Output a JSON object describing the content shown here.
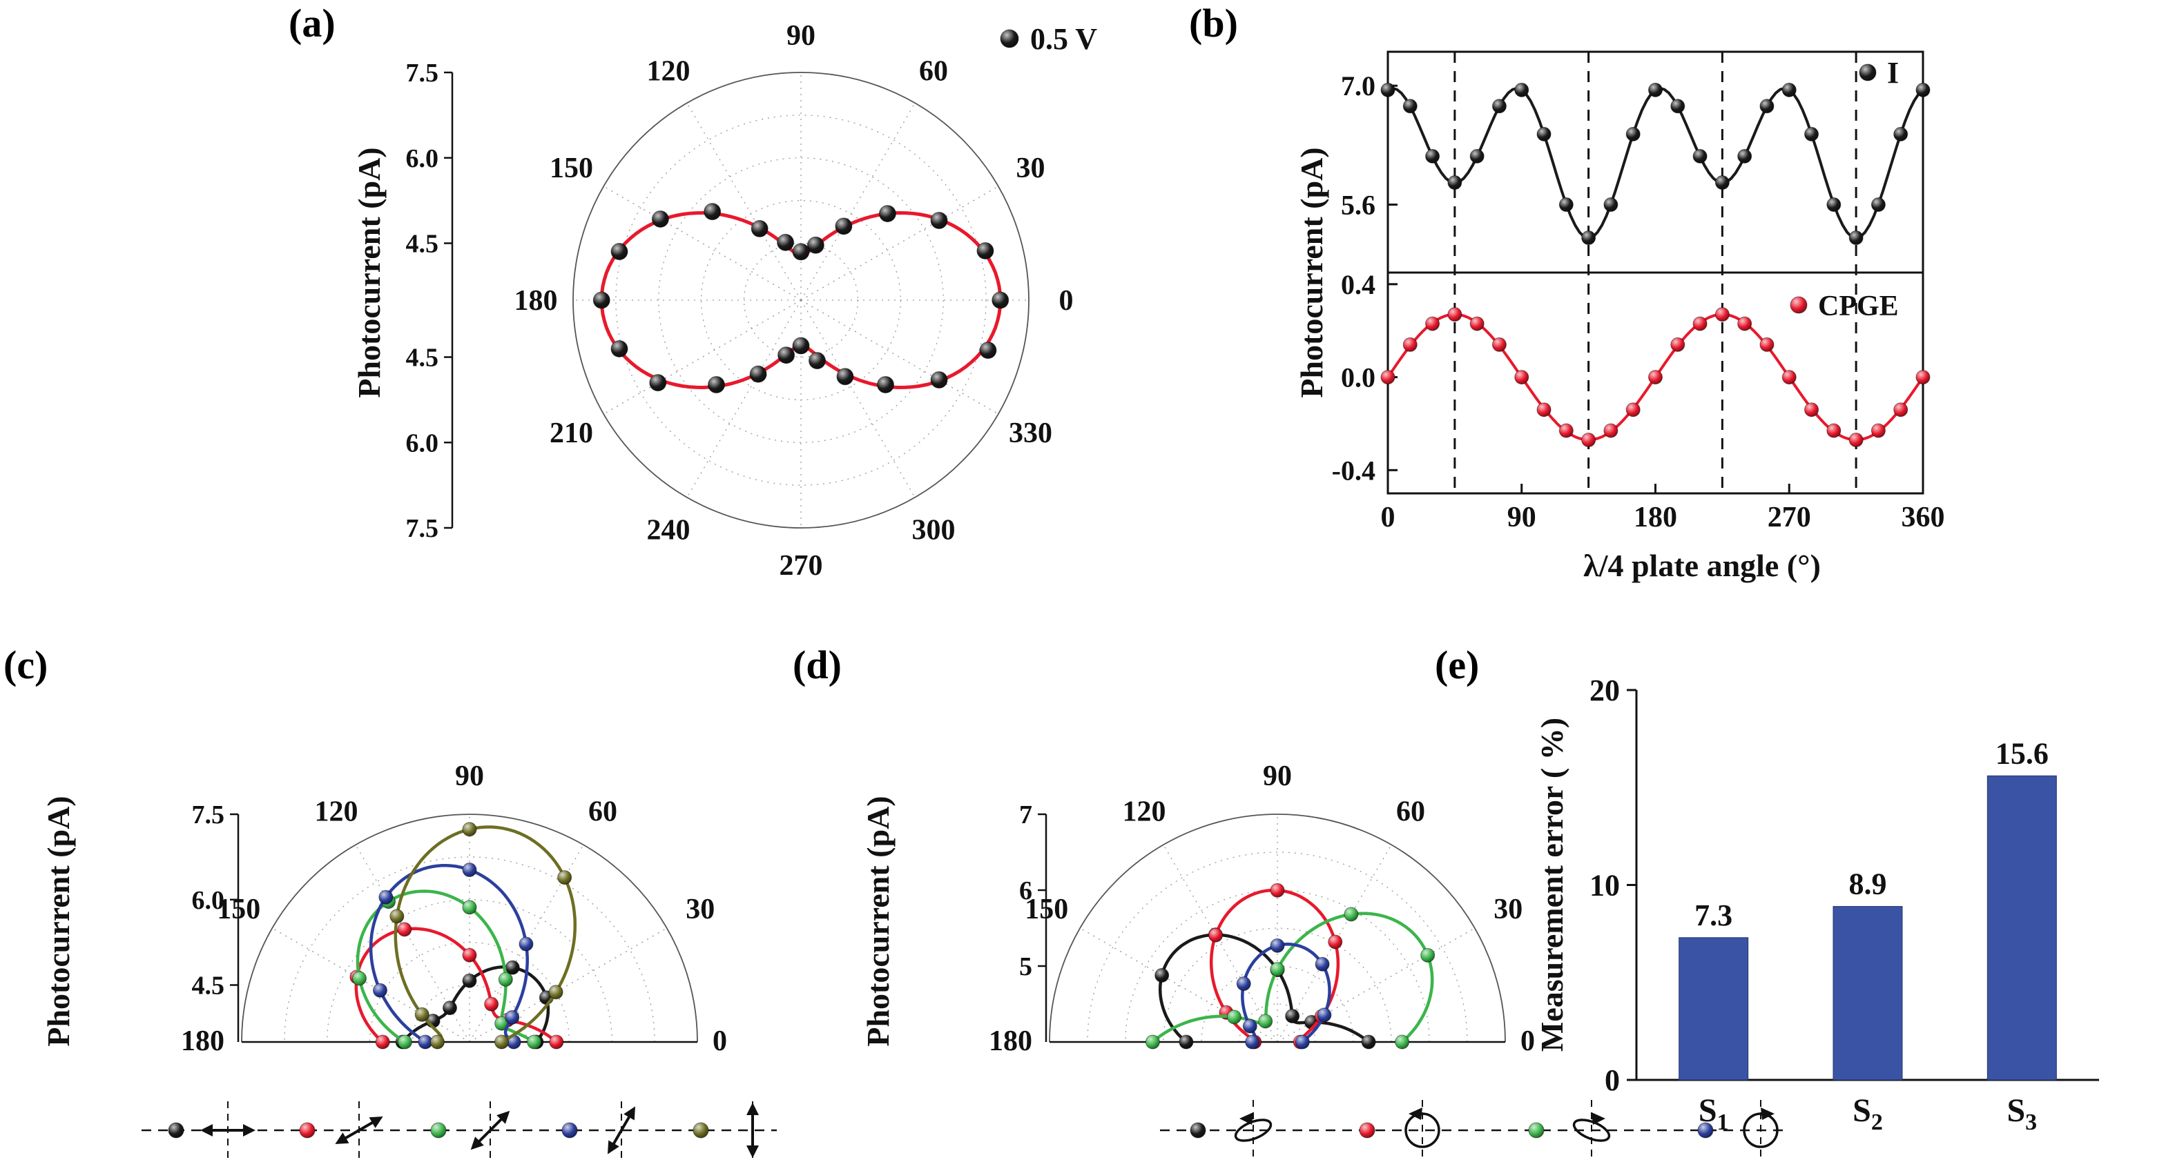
{
  "figure": {
    "background": "#ffffff"
  },
  "panel_labels": {
    "a": "(a)",
    "b": "(b)",
    "c": "(c)",
    "d": "(d)",
    "e": "(e)"
  },
  "chart_data": [
    {
      "id": "a",
      "type": "polar-scatter",
      "ylabel": "Photocurrent (pA)",
      "legend": [
        {
          "label": "0.5 V",
          "color": "#1a1a1a"
        }
      ],
      "r_min": 3.5,
      "r_max": 7.5,
      "r_ticks": [
        4.5,
        6.0,
        7.5
      ],
      "r_grid": [
        4.5,
        5.25,
        6.0,
        6.75,
        7.5
      ],
      "angle_ticks_deg": [
        0,
        30,
        60,
        90,
        120,
        150,
        180,
        210,
        240,
        270,
        300,
        330
      ],
      "fit": {
        "color": "#e8192c",
        "base": 4.3,
        "amp": 2.7,
        "center_deg": 0
      },
      "points": {
        "color": "#1a1a1a",
        "angles_deg": [
          0,
          15,
          30,
          45,
          60,
          75,
          90,
          105,
          120,
          135,
          150,
          165,
          180,
          195,
          210,
          225,
          240,
          255,
          270,
          285,
          300,
          315,
          330,
          345
        ],
        "r": [
          7.0,
          6.85,
          6.3,
          5.65,
          5.0,
          4.5,
          4.35,
          4.55,
          4.95,
          5.7,
          6.35,
          6.8,
          7.0,
          6.8,
          6.4,
          5.6,
          5.0,
          4.5,
          4.3,
          4.6,
          5.05,
          5.6,
          6.3,
          6.9
        ]
      }
    },
    {
      "id": "b",
      "type": "stacked-line",
      "ylabel": "Photocurrent (pA)",
      "xlabel": "λ/4 plate angle (°)",
      "x_ticks": [
        0,
        90,
        180,
        270,
        360
      ],
      "x_range": [
        0,
        360
      ],
      "dashed_lines_x": [
        45,
        135,
        225,
        315
      ],
      "top": {
        "legend": "I",
        "color": "#1a1a1a",
        "y_range": [
          4.8,
          7.4
        ],
        "y_ticks": [
          5.6,
          7.0
        ],
        "fit": {
          "a0": 6.24,
          "c4": 0.71,
          "s2": 0.325
        },
        "x": [
          0,
          15,
          30,
          45,
          60,
          75,
          90,
          105,
          120,
          135,
          150,
          165,
          180,
          195,
          210,
          225,
          240,
          255,
          270,
          285,
          300,
          315,
          330,
          345,
          360
        ],
        "y": [
          6.95,
          6.76,
          6.17,
          5.86,
          6.17,
          6.76,
          6.95,
          6.43,
          5.6,
          5.21,
          5.6,
          6.43,
          6.95,
          6.76,
          6.17,
          5.86,
          6.17,
          6.76,
          6.95,
          6.43,
          5.6,
          5.21,
          5.6,
          6.43,
          6.95
        ]
      },
      "bottom": {
        "legend": "CPGE",
        "color": "#e8192c",
        "y_range": [
          -0.5,
          0.45
        ],
        "y_ticks": [
          -0.4,
          0.0,
          0.4
        ],
        "fit": {
          "amp": 0.27
        },
        "x": [
          0,
          15,
          30,
          45,
          60,
          75,
          90,
          105,
          120,
          135,
          150,
          165,
          180,
          195,
          210,
          225,
          240,
          255,
          270,
          285,
          300,
          315,
          330,
          345,
          360
        ],
        "y": [
          0,
          0.14,
          0.23,
          0.27,
          0.23,
          0.14,
          0,
          -0.14,
          -0.23,
          -0.27,
          -0.23,
          -0.14,
          0,
          0.14,
          0.23,
          0.27,
          0.23,
          0.14,
          0,
          -0.14,
          -0.23,
          -0.27,
          -0.23,
          -0.14,
          0
        ]
      }
    },
    {
      "id": "c",
      "type": "half-polar",
      "ylabel": "Photocurrent (pA)",
      "r_min": 3.5,
      "r_max": 7.5,
      "r_ticks": [
        4.5,
        6.0,
        7.5
      ],
      "tick_fmt": "1dp",
      "r_grid": [
        4.5,
        5.25,
        6.0,
        6.75,
        7.5
      ],
      "angle_ticks_deg": [
        0,
        30,
        60,
        90,
        120,
        150,
        180
      ],
      "marker_step_deg": 30,
      "series": [
        {
          "name": "linear-pol-0deg",
          "color": "#1a1a1a",
          "base": 4.15,
          "amp": 0.95,
          "center_deg": 42
        },
        {
          "name": "linear-pol-30deg",
          "color": "#e8192c",
          "base": 4.15,
          "amp": 1.75,
          "center_deg": 135
        },
        {
          "name": "linear-pol-45deg",
          "color": "#3bb54a",
          "base": 4.15,
          "amp": 2.2,
          "center_deg": 118
        },
        {
          "name": "linear-pol-60deg",
          "color": "#2b3f9e",
          "base": 4.15,
          "amp": 2.5,
          "center_deg": 103
        },
        {
          "name": "linear-pol-90deg",
          "color": "#6e6e23",
          "base": 4.0,
          "amp": 3.3,
          "center_deg": 82
        }
      ],
      "legend": {
        "type": "linear-polarization",
        "arrow_angles_deg": [
          0,
          30,
          45,
          60,
          90
        ],
        "colors": [
          "#1a1a1a",
          "#e8192c",
          "#3bb54a",
          "#2b3f9e",
          "#6e6e23"
        ]
      }
    },
    {
      "id": "d",
      "type": "half-polar",
      "ylabel": "Photocurrent (pA)",
      "r_min": 4.0,
      "r_max": 7.0,
      "r_ticks": [
        5,
        6,
        7
      ],
      "tick_fmt": "int",
      "r_grid": [
        4.5,
        5.0,
        5.5,
        6.0,
        6.5,
        7.0
      ],
      "angle_ticks_deg": [
        0,
        30,
        60,
        90,
        120,
        150,
        180
      ],
      "marker_step_deg": 30,
      "series": [
        {
          "name": "elliptical-left",
          "color": "#1a1a1a",
          "base": 4.35,
          "amp": 1.45,
          "center_deg": 140
        },
        {
          "name": "circular-left",
          "color": "#e8192c",
          "base": 4.3,
          "amp": 1.7,
          "center_deg": 92
        },
        {
          "name": "elliptical-right",
          "color": "#3bb54a",
          "base": 4.3,
          "amp": 2.0,
          "center_deg": 35
        },
        {
          "name": "circular-right",
          "color": "#2b3f9e",
          "base": 4.3,
          "amp": 1.0,
          "center_deg": 80
        }
      ],
      "legend": {
        "type": "circular-polarization",
        "symbols": [
          "ellipse-ccw",
          "circle-ccw",
          "ellipse-cw",
          "circle-cw"
        ],
        "colors": [
          "#1a1a1a",
          "#e8192c",
          "#3bb54a",
          "#2b3f9e"
        ]
      }
    },
    {
      "id": "e",
      "type": "bar",
      "ylabel": "Measurement error ( %)",
      "categories": [
        {
          "base": "S",
          "sub": "1"
        },
        {
          "base": "S",
          "sub": "2"
        },
        {
          "base": "S",
          "sub": "3"
        }
      ],
      "values": [
        7.3,
        8.9,
        15.6
      ],
      "value_labels": [
        "7.3",
        "8.9",
        "15.6"
      ],
      "bar_color": "#3a53a4",
      "y_range": [
        0,
        20
      ],
      "y_ticks": [
        0,
        10,
        20
      ]
    }
  ]
}
